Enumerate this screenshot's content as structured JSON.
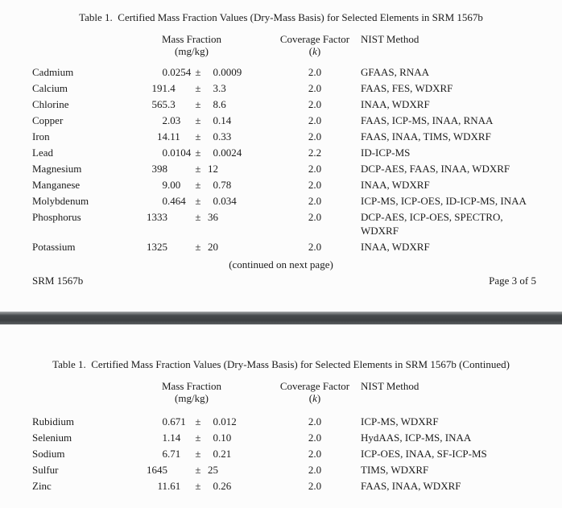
{
  "page1": {
    "title": "Table 1.  Certified Mass Fraction Values (Dry-Mass Basis) for Selected Elements in SRM 1567b",
    "header": {
      "mass_fraction": "Mass Fraction",
      "mass_fraction_unit": "(mg/kg)",
      "coverage_factor": "Coverage Factor",
      "k_open": "(",
      "k_symbol": "k",
      "k_close": ")",
      "nist_method": "NIST Method"
    },
    "rows": [
      {
        "element": "Cadmium",
        "value": "0.0254",
        "pm": "±",
        "uncertainty": "0.0009",
        "k": "2.0",
        "method": "GFAAS, RNAA"
      },
      {
        "element": "Calcium",
        "value": "191.4",
        "pm": "±",
        "uncertainty": "3.3",
        "k": "2.0",
        "method": "FAAS, FES, WDXRF"
      },
      {
        "element": "Chlorine",
        "value": "565.3",
        "pm": "±",
        "uncertainty": "8.6",
        "k": "2.0",
        "method": "INAA, WDXRF"
      },
      {
        "element": "Copper",
        "value": "2.03",
        "pm": "±",
        "uncertainty": "0.14",
        "k": "2.0",
        "method": "FAAS, ICP-MS, INAA, RNAA"
      },
      {
        "element": "Iron",
        "value": "14.11",
        "pm": "±",
        "uncertainty": "0.33",
        "k": "2.0",
        "method": "FAAS, INAA, TIMS, WDXRF"
      },
      {
        "element": "Lead",
        "value": "0.0104",
        "pm": "±",
        "uncertainty": "0.0024",
        "k": "2.2",
        "method": "ID-ICP-MS"
      },
      {
        "element": "Magnesium",
        "value": "398",
        "pm": "±",
        "uncertainty": "12",
        "k": "2.0",
        "method": "DCP-AES, FAAS, INAA, WDXRF"
      },
      {
        "element": "Manganese",
        "value": "9.00",
        "pm": "±",
        "uncertainty": "0.78",
        "k": "2.0",
        "method": "INAA, WDXRF"
      },
      {
        "element": "Molybdenum",
        "value": "0.464",
        "pm": "±",
        "uncertainty": "0.034",
        "k": "2.0",
        "method": "ICP-MS, ICP-OES, ID-ICP-MS, INAA"
      },
      {
        "element": "Phosphorus",
        "value": "1333",
        "pm": "±",
        "uncertainty": "36",
        "k": "2.0",
        "method": "DCP-AES, ICP-OES, SPECTRO,\nWDXRF"
      },
      {
        "element": "Potassium",
        "value": "1325",
        "pm": "±",
        "uncertainty": "20",
        "k": "2.0",
        "method": "INAA, WDXRF"
      }
    ],
    "continued_note": "(continued on next page)",
    "footer": {
      "left": "SRM 1567b",
      "right": "Page 3 of 5"
    }
  },
  "page2": {
    "title": "Table 1.  Certified Mass Fraction Values (Dry-Mass Basis) for Selected Elements in SRM 1567b (Continued)",
    "header": {
      "mass_fraction": "Mass Fraction",
      "mass_fraction_unit": "(mg/kg)",
      "coverage_factor": "Coverage Factor",
      "k_open": "(",
      "k_symbol": "k",
      "k_close": ")",
      "nist_method": "NIST Method"
    },
    "rows": [
      {
        "element": "Rubidium",
        "value": "0.671",
        "pm": "±",
        "uncertainty": "0.012",
        "k": "2.0",
        "method": "ICP-MS, WDXRF"
      },
      {
        "element": "Selenium",
        "value": "1.14",
        "pm": "±",
        "uncertainty": "0.10",
        "k": "2.0",
        "method": "HydAAS, ICP-MS, INAA"
      },
      {
        "element": "Sodium",
        "value": "6.71",
        "pm": "±",
        "uncertainty": "0.21",
        "k": "2.0",
        "method": "ICP-OES, INAA, SF-ICP-MS"
      },
      {
        "element": "Sulfur",
        "value": "1645",
        "pm": "±",
        "uncertainty": "25",
        "k": "2.0",
        "method": "TIMS, WDXRF"
      },
      {
        "element": "Zinc",
        "value": "11.61",
        "pm": "±",
        "uncertainty": "0.26",
        "k": "2.0",
        "method": "FAAS, INAA, WDXRF"
      }
    ]
  },
  "separator_color": "#424648"
}
